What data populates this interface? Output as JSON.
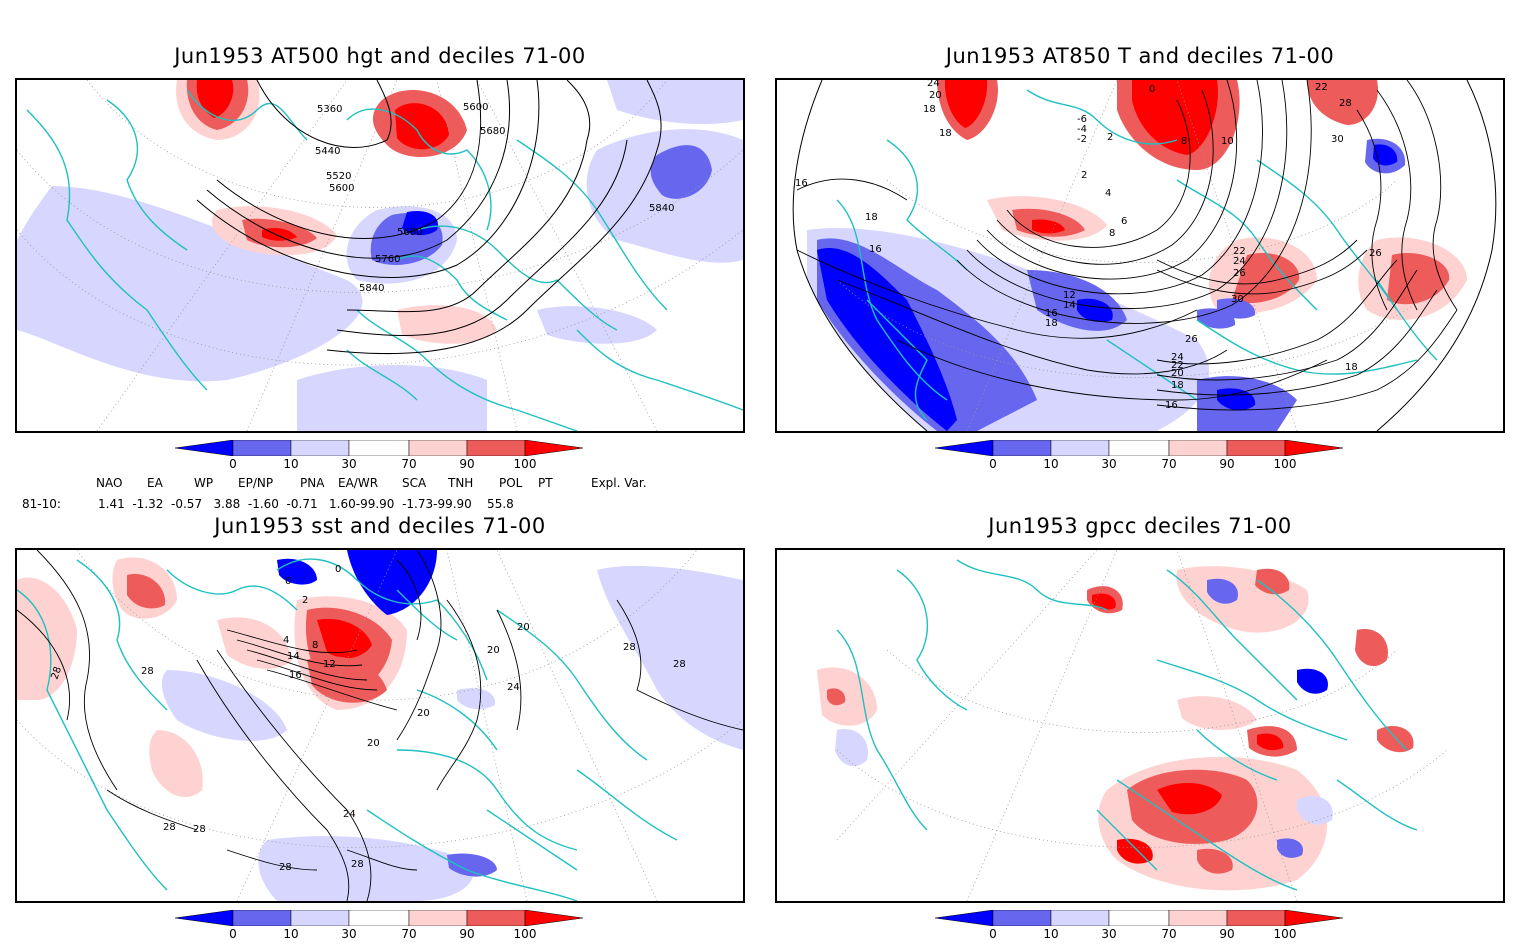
{
  "panels": [
    {
      "id": "p1",
      "title": "Jun1953 AT500 hgt and deciles 71-00",
      "contour_labels": [
        "5360",
        "5600",
        "5680",
        "5440",
        "5520",
        "5600",
        "5680",
        "5760",
        "5840",
        "5840"
      ]
    },
    {
      "id": "p2",
      "title": "Jun1953 AT850 T and deciles 71-00",
      "contour_labels": [
        "24",
        "20",
        "18",
        "0",
        "22",
        "28",
        "18",
        "-6",
        "-4",
        "-2",
        "2",
        "8",
        "10",
        "30",
        "16",
        "18",
        "2",
        "4",
        "6",
        "8",
        "16",
        "26",
        "12",
        "14",
        "16",
        "18",
        "22",
        "24",
        "26",
        "30",
        "26",
        "24",
        "22",
        "20",
        "18",
        "16",
        "18"
      ]
    },
    {
      "id": "p3",
      "title": "Jun1953 sst and deciles 71-00",
      "contour_labels": [
        "28",
        "28",
        "0",
        "0",
        "2",
        "4",
        "8",
        "12",
        "14",
        "16",
        "20",
        "24",
        "28",
        "20",
        "24",
        "20",
        "20",
        "28",
        "28",
        "28",
        "28",
        "28"
      ]
    },
    {
      "id": "p4",
      "title": "Jun1953 gpcc deciles 71-00",
      "contour_labels": []
    }
  ],
  "colorbar": {
    "labels": [
      "0",
      "10",
      "30",
      "70",
      "90",
      "100"
    ],
    "colors": [
      "#0000ff",
      "#6666ee",
      "#d6d6ff",
      "#ffffff",
      "#ffd2d2",
      "#ee5b5b",
      "#ff0000"
    ]
  },
  "indices": {
    "header": [
      "NAO",
      "EA",
      "WP",
      "EP/NP",
      "PNA",
      "EA/WR",
      "SCA",
      "TNH",
      "POL",
      "PT",
      "Expl. Var."
    ],
    "row_label": "81-10:",
    "values": "1.41  -1.32  -0.57   3.88  -1.60  -0.71   1.60-99.90  -1.73-99.90    55.8"
  },
  "colors": {
    "coast": "#20c0c0",
    "contour": "#000000",
    "grid": "#999999"
  }
}
